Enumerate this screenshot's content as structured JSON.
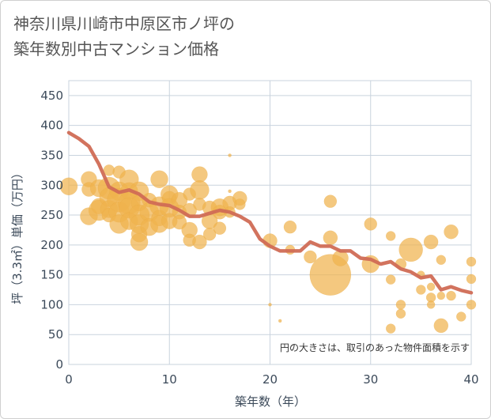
{
  "chart_data": {
    "type": "scatter",
    "title_lines": [
      "神奈川県川崎市中原区市ノ坪の",
      "築年数別中古マンション価格"
    ],
    "xlabel": "築年数（年）",
    "ylabel": "坪（3.3㎡）単価（万円）",
    "xlim": [
      0,
      40
    ],
    "ylim": [
      0,
      475
    ],
    "xticks": [
      0,
      10,
      20,
      30,
      40
    ],
    "yticks": [
      0,
      50,
      100,
      150,
      200,
      250,
      300,
      350,
      400,
      450
    ],
    "grid": true,
    "annotation": "円の大きさは、取引のあった物件面積を示す",
    "colors": {
      "bubble": "#f0b34e",
      "line": "#d06c55",
      "grid": "#c9d3de",
      "text": "#3c4a5a"
    },
    "series": [
      {
        "kind": "bubbles",
        "points": [
          {
            "x": 0,
            "y": 298,
            "s": 11
          },
          {
            "x": 2,
            "y": 310,
            "s": 10
          },
          {
            "x": 2,
            "y": 293,
            "s": 9
          },
          {
            "x": 2,
            "y": 248,
            "s": 11
          },
          {
            "x": 3,
            "y": 295,
            "s": 11
          },
          {
            "x": 3,
            "y": 265,
            "s": 10
          },
          {
            "x": 3,
            "y": 258,
            "s": 13
          },
          {
            "x": 4,
            "y": 295,
            "s": 14
          },
          {
            "x": 4,
            "y": 280,
            "s": 12
          },
          {
            "x": 4,
            "y": 260,
            "s": 11
          },
          {
            "x": 4,
            "y": 250,
            "s": 9
          },
          {
            "x": 4,
            "y": 325,
            "s": 7
          },
          {
            "x": 5,
            "y": 322,
            "s": 8
          },
          {
            "x": 5,
            "y": 290,
            "s": 12
          },
          {
            "x": 5,
            "y": 275,
            "s": 15
          },
          {
            "x": 5,
            "y": 255,
            "s": 13
          },
          {
            "x": 5,
            "y": 235,
            "s": 12
          },
          {
            "x": 6,
            "y": 310,
            "s": 12
          },
          {
            "x": 6,
            "y": 290,
            "s": 11
          },
          {
            "x": 6,
            "y": 270,
            "s": 14
          },
          {
            "x": 6,
            "y": 262,
            "s": 13
          },
          {
            "x": 6,
            "y": 240,
            "s": 11
          },
          {
            "x": 7,
            "y": 290,
            "s": 12
          },
          {
            "x": 7,
            "y": 270,
            "s": 10
          },
          {
            "x": 7,
            "y": 250,
            "s": 13
          },
          {
            "x": 7,
            "y": 235,
            "s": 12
          },
          {
            "x": 7,
            "y": 218,
            "s": 10
          },
          {
            "x": 7,
            "y": 205,
            "s": 11
          },
          {
            "x": 8,
            "y": 275,
            "s": 9
          },
          {
            "x": 8,
            "y": 255,
            "s": 12
          },
          {
            "x": 8,
            "y": 230,
            "s": 11
          },
          {
            "x": 9,
            "y": 310,
            "s": 11
          },
          {
            "x": 9,
            "y": 265,
            "s": 12
          },
          {
            "x": 9,
            "y": 245,
            "s": 10
          },
          {
            "x": 9,
            "y": 235,
            "s": 11
          },
          {
            "x": 10,
            "y": 285,
            "s": 11
          },
          {
            "x": 10,
            "y": 278,
            "s": 9
          },
          {
            "x": 10,
            "y": 262,
            "s": 12
          },
          {
            "x": 10,
            "y": 240,
            "s": 10
          },
          {
            "x": 11,
            "y": 275,
            "s": 10
          },
          {
            "x": 11,
            "y": 255,
            "s": 9
          },
          {
            "x": 11,
            "y": 238,
            "s": 9
          },
          {
            "x": 12,
            "y": 285,
            "s": 8
          },
          {
            "x": 12,
            "y": 258,
            "s": 9
          },
          {
            "x": 12,
            "y": 225,
            "s": 10
          },
          {
            "x": 12,
            "y": 208,
            "s": 8
          },
          {
            "x": 13,
            "y": 318,
            "s": 10
          },
          {
            "x": 13,
            "y": 292,
            "s": 12
          },
          {
            "x": 13,
            "y": 268,
            "s": 8
          },
          {
            "x": 13,
            "y": 205,
            "s": 9
          },
          {
            "x": 14,
            "y": 262,
            "s": 9
          },
          {
            "x": 14,
            "y": 240,
            "s": 10
          },
          {
            "x": 14,
            "y": 218,
            "s": 8
          },
          {
            "x": 15,
            "y": 263,
            "s": 11
          },
          {
            "x": 15,
            "y": 255,
            "s": 9
          },
          {
            "x": 15,
            "y": 228,
            "s": 8
          },
          {
            "x": 16,
            "y": 270,
            "s": 9
          },
          {
            "x": 16,
            "y": 255,
            "s": 7
          },
          {
            "x": 16,
            "y": 290,
            "s": 2
          },
          {
            "x": 16,
            "y": 350,
            "s": 2
          },
          {
            "x": 17,
            "y": 278,
            "s": 9
          },
          {
            "x": 17,
            "y": 268,
            "s": 7
          },
          {
            "x": 20,
            "y": 207,
            "s": 9
          },
          {
            "x": 20,
            "y": 100,
            "s": 2
          },
          {
            "x": 21,
            "y": 73,
            "s": 2
          },
          {
            "x": 22,
            "y": 230,
            "s": 8
          },
          {
            "x": 22,
            "y": 192,
            "s": 6
          },
          {
            "x": 24,
            "y": 180,
            "s": 8
          },
          {
            "x": 26,
            "y": 273,
            "s": 8
          },
          {
            "x": 26,
            "y": 212,
            "s": 9
          },
          {
            "x": 26,
            "y": 150,
            "s": 26
          },
          {
            "x": 27,
            "y": 178,
            "s": 10
          },
          {
            "x": 30,
            "y": 235,
            "s": 8
          },
          {
            "x": 30,
            "y": 168,
            "s": 11
          },
          {
            "x": 32,
            "y": 215,
            "s": 6
          },
          {
            "x": 32,
            "y": 142,
            "s": 6
          },
          {
            "x": 32,
            "y": 60,
            "s": 6
          },
          {
            "x": 33,
            "y": 168,
            "s": 7
          },
          {
            "x": 33,
            "y": 100,
            "s": 6
          },
          {
            "x": 33,
            "y": 85,
            "s": 6
          },
          {
            "x": 34,
            "y": 192,
            "s": 15
          },
          {
            "x": 35,
            "y": 125,
            "s": 6
          },
          {
            "x": 35,
            "y": 150,
            "s": 5
          },
          {
            "x": 36,
            "y": 205,
            "s": 9
          },
          {
            "x": 36,
            "y": 130,
            "s": 5
          },
          {
            "x": 36,
            "y": 112,
            "s": 6
          },
          {
            "x": 36,
            "y": 100,
            "s": 5
          },
          {
            "x": 37,
            "y": 175,
            "s": 6
          },
          {
            "x": 37,
            "y": 115,
            "s": 5
          },
          {
            "x": 37,
            "y": 65,
            "s": 9
          },
          {
            "x": 38,
            "y": 222,
            "s": 9
          },
          {
            "x": 38,
            "y": 115,
            "s": 6
          },
          {
            "x": 39,
            "y": 80,
            "s": 6
          },
          {
            "x": 40,
            "y": 172,
            "s": 6
          },
          {
            "x": 40,
            "y": 143,
            "s": 6
          },
          {
            "x": 40,
            "y": 100,
            "s": 6
          }
        ]
      },
      {
        "kind": "line",
        "points": [
          {
            "x": 0,
            "y": 388
          },
          {
            "x": 1,
            "y": 378
          },
          {
            "x": 2,
            "y": 365
          },
          {
            "x": 3,
            "y": 335
          },
          {
            "x": 4,
            "y": 297
          },
          {
            "x": 5,
            "y": 288
          },
          {
            "x": 6,
            "y": 292
          },
          {
            "x": 7,
            "y": 285
          },
          {
            "x": 8,
            "y": 272
          },
          {
            "x": 9,
            "y": 268
          },
          {
            "x": 10,
            "y": 266
          },
          {
            "x": 11,
            "y": 258
          },
          {
            "x": 12,
            "y": 248
          },
          {
            "x": 13,
            "y": 248
          },
          {
            "x": 14,
            "y": 253
          },
          {
            "x": 15,
            "y": 258
          },
          {
            "x": 16,
            "y": 255
          },
          {
            "x": 17,
            "y": 248
          },
          {
            "x": 18,
            "y": 238
          },
          {
            "x": 19,
            "y": 210
          },
          {
            "x": 20,
            "y": 198
          },
          {
            "x": 21,
            "y": 190
          },
          {
            "x": 22,
            "y": 190
          },
          {
            "x": 23,
            "y": 190
          },
          {
            "x": 24,
            "y": 205
          },
          {
            "x": 25,
            "y": 198
          },
          {
            "x": 26,
            "y": 198
          },
          {
            "x": 27,
            "y": 190
          },
          {
            "x": 28,
            "y": 190
          },
          {
            "x": 29,
            "y": 178
          },
          {
            "x": 30,
            "y": 176
          },
          {
            "x": 31,
            "y": 168
          },
          {
            "x": 32,
            "y": 172
          },
          {
            "x": 33,
            "y": 160
          },
          {
            "x": 34,
            "y": 155
          },
          {
            "x": 35,
            "y": 145
          },
          {
            "x": 36,
            "y": 148
          },
          {
            "x": 37,
            "y": 125
          },
          {
            "x": 38,
            "y": 130
          },
          {
            "x": 39,
            "y": 124
          },
          {
            "x": 40,
            "y": 120
          }
        ]
      }
    ]
  }
}
